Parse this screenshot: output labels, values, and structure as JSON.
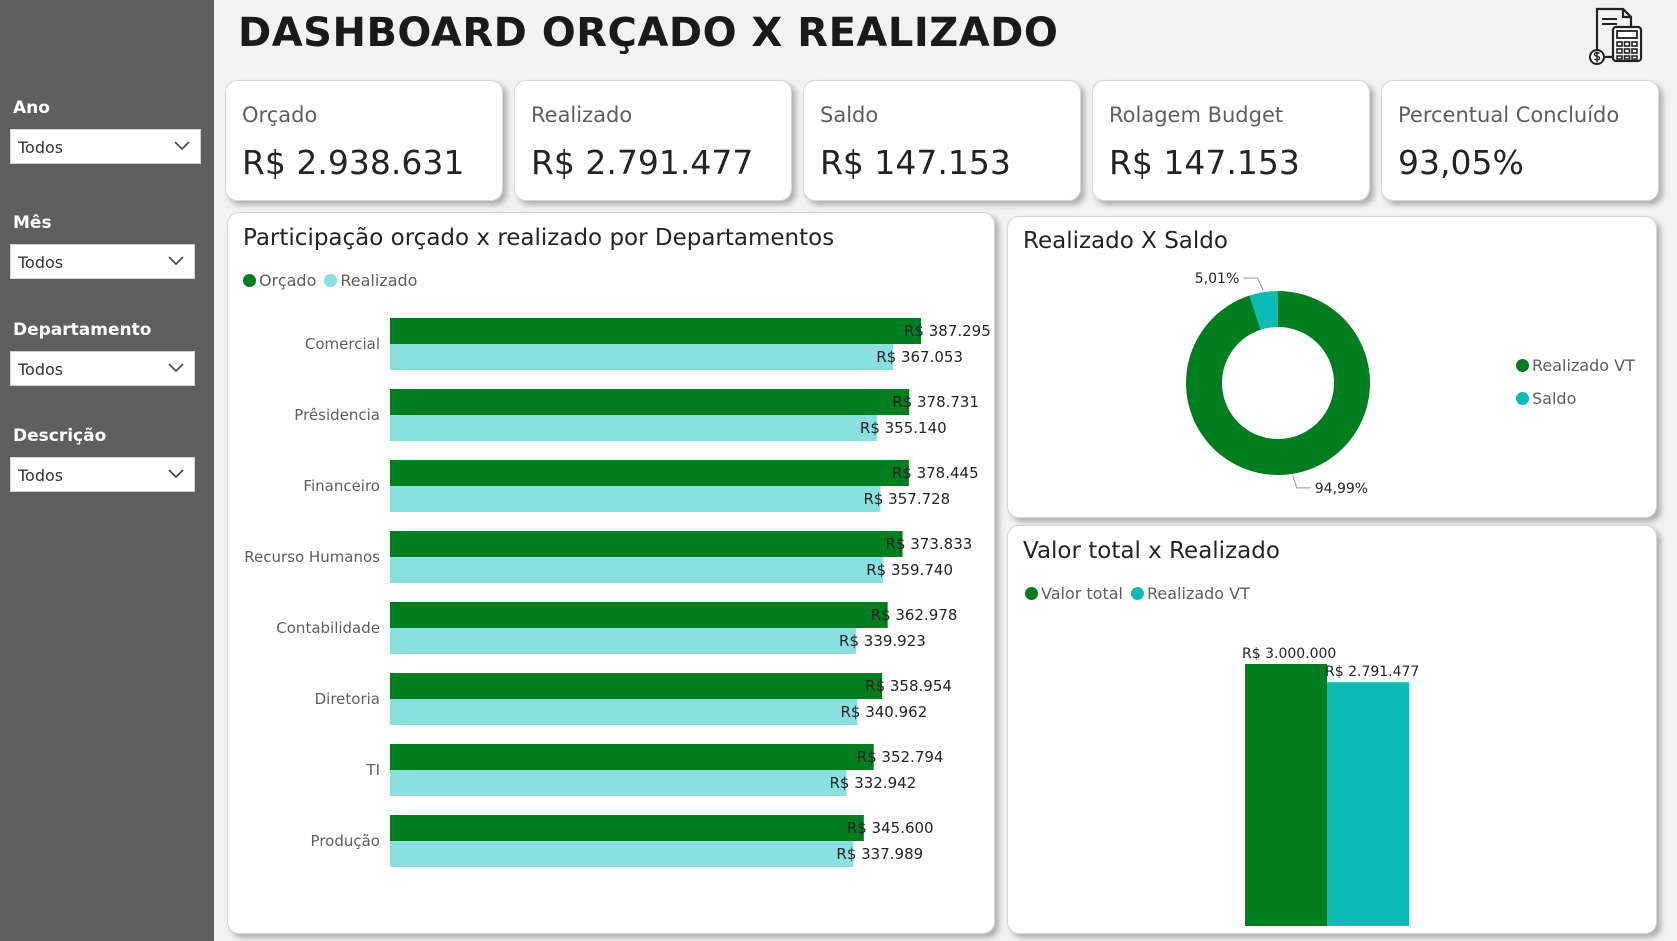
{
  "title": "DASHBOARD ORÇADO X REALIZADO",
  "top_icon": "budget-calculator-icon",
  "filters": [
    {
      "label": "Ano",
      "value": "Todos"
    },
    {
      "label": "Mês",
      "value": "Todos"
    },
    {
      "label": "Departamento",
      "value": "Todos"
    },
    {
      "label": "Descrição",
      "value": "Todos"
    }
  ],
  "kpis": [
    {
      "label": "Orçado",
      "value": "R$ 2.938.631"
    },
    {
      "label": "Realizado",
      "value": "R$ 2.791.477"
    },
    {
      "label": "Saldo",
      "value": "R$ 147.153"
    },
    {
      "label": "Rolagem Budget",
      "value": "R$ 147.153"
    },
    {
      "label": "Percentual Concluído",
      "value": "93,05%"
    }
  ],
  "colors": {
    "dark_green": "#007d1e",
    "light_cyan": "#8ae0df",
    "teal": "#0bbcb6",
    "sidebar": "#5f5f5f"
  },
  "chart_data": [
    {
      "type": "bar",
      "orientation": "horizontal",
      "title": "Participação orçado x realizado por Departamentos",
      "categories": [
        "Comercial",
        "Prêsidencia",
        "Financeiro",
        "Recurso Humanos",
        "Contabilidade",
        "Diretoria",
        "TI",
        "Produção"
      ],
      "series": [
        {
          "name": "Orçado",
          "color": "#007d1e",
          "values": [
            387295,
            378731,
            378445,
            373833,
            362978,
            358954,
            352794,
            345600
          ],
          "labels": [
            "R$ 387.295",
            "R$ 378.731",
            "R$ 378.445",
            "R$ 373.833",
            "R$ 362.978",
            "R$ 358.954",
            "R$ 352.794",
            "R$ 345.600"
          ]
        },
        {
          "name": "Realizado",
          "color": "#8ae0df",
          "values": [
            367053,
            355140,
            357728,
            359740,
            339923,
            340962,
            332942,
            337989
          ],
          "labels": [
            "R$ 367.053",
            "R$ 355.140",
            "R$ 357.728",
            "R$ 359.740",
            "R$ 339.923",
            "R$ 340.962",
            "R$ 332.942",
            "R$ 337.989"
          ]
        }
      ],
      "xlim": [
        0,
        387295
      ],
      "legend": "top-left",
      "grid": false
    },
    {
      "type": "pie",
      "variant": "donut",
      "title": "Realizado X Saldo",
      "slices": [
        {
          "name": "Realizado VT",
          "value": 94.99,
          "label": "94,99%",
          "color": "#007d1e"
        },
        {
          "name": "Saldo",
          "value": 5.01,
          "label": "5,01%",
          "color": "#0bbcb6"
        }
      ],
      "legend": "right"
    },
    {
      "type": "bar",
      "title": "Valor total x Realizado",
      "series": [
        {
          "name": "Valor total",
          "value": 3000000,
          "label": "R$ 3.000.000",
          "color": "#007d1e"
        },
        {
          "name": "Realizado VT",
          "value": 2791477,
          "label": "R$ 2.791.477",
          "color": "#0bbcb6"
        }
      ],
      "ylim": [
        0,
        3000000
      ],
      "legend": "top-left",
      "grid": false
    }
  ]
}
